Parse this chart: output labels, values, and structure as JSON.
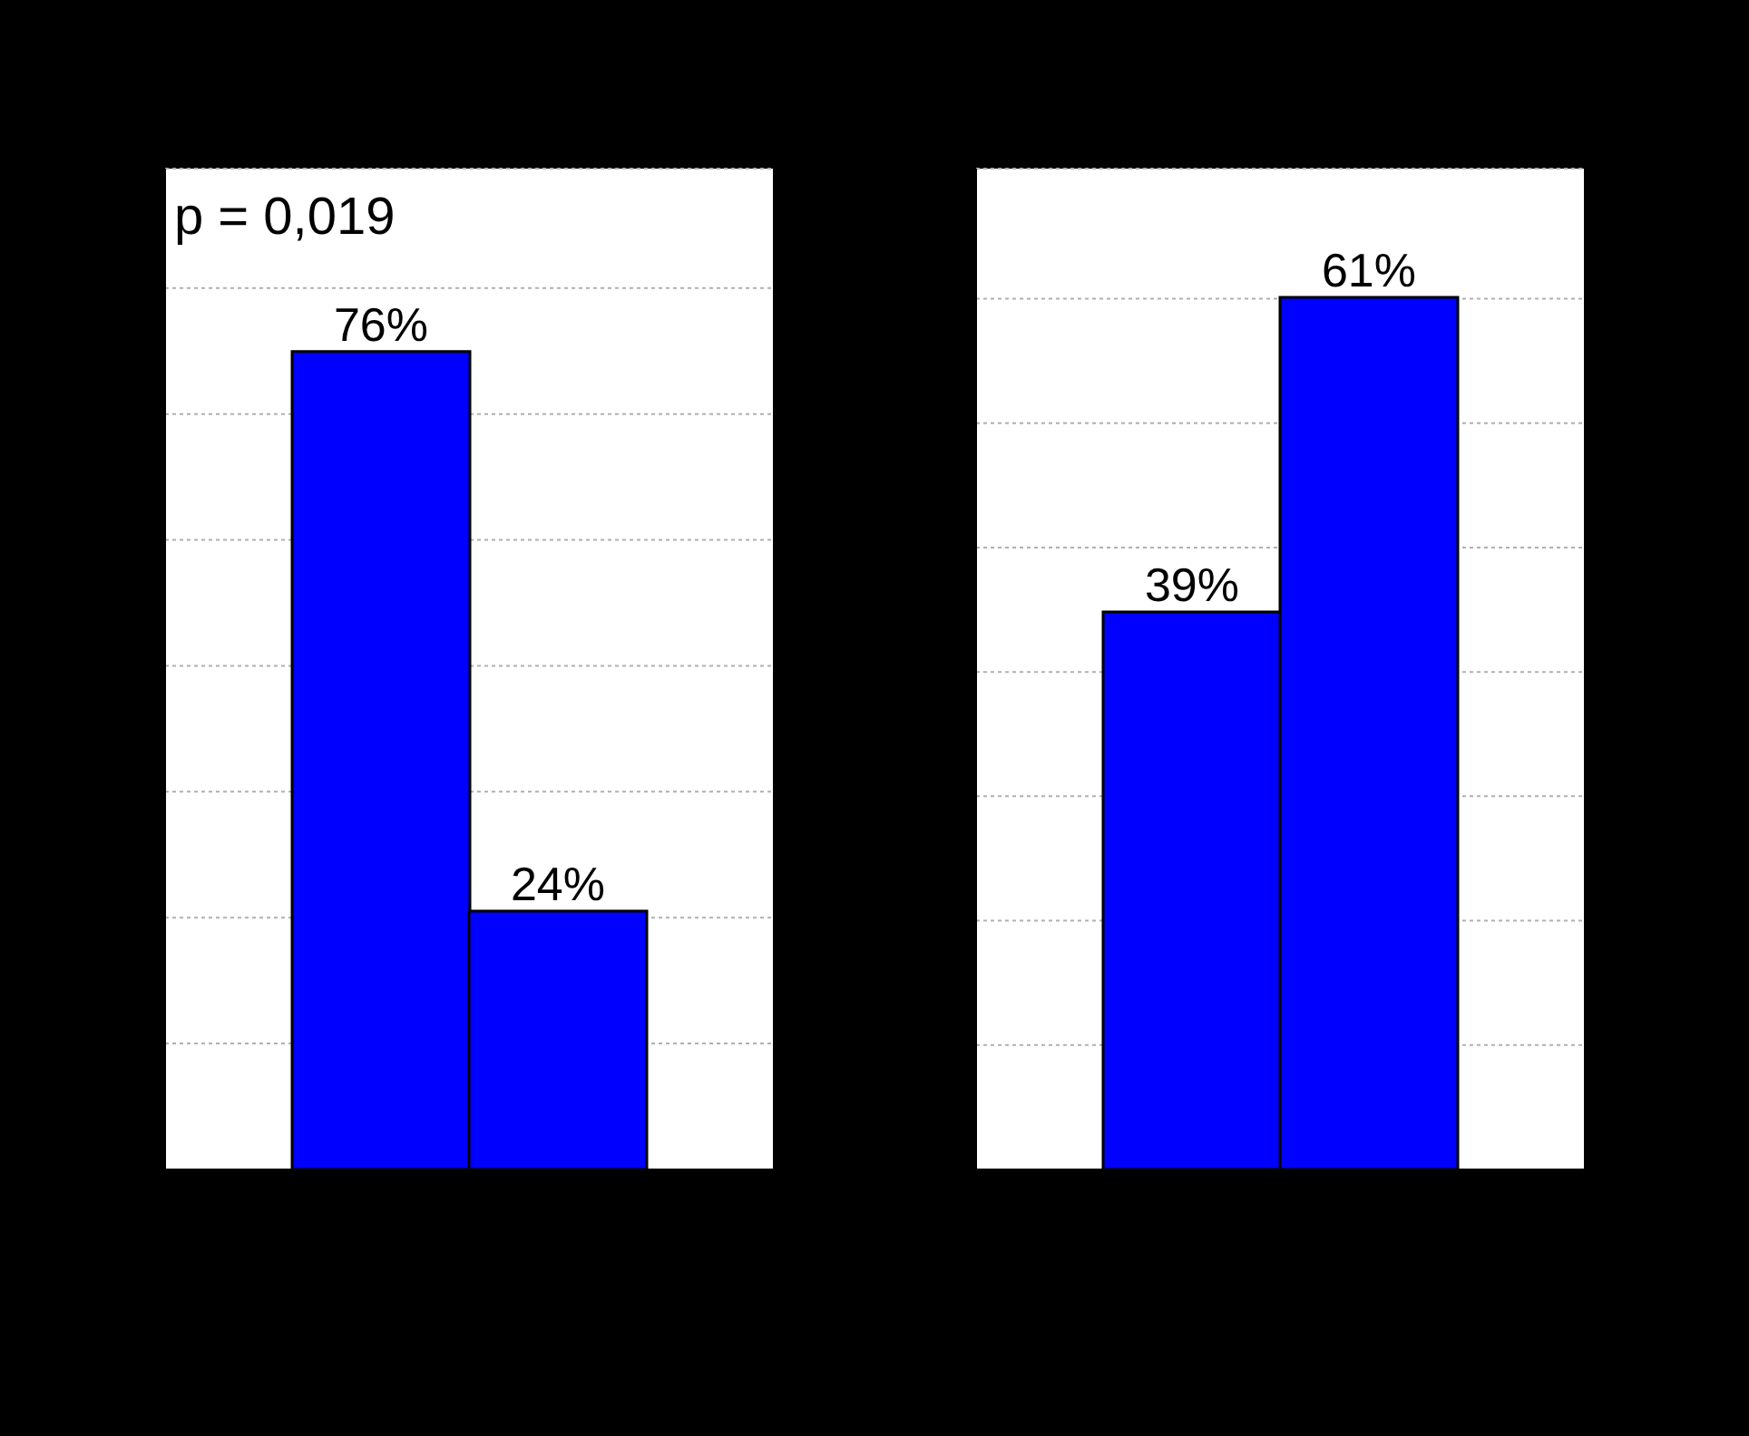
{
  "chart_data": [
    {
      "type": "bar",
      "categories": [
        null,
        null
      ],
      "values": [
        76,
        24
      ],
      "color": "#0000ff",
      "value_labels": [
        "76%",
        "24%"
      ],
      "ylim": [
        0,
        93
      ],
      "yticks": [
        {
          "value": 0,
          "label": null
        },
        {
          "value": 11.7,
          "label": null
        },
        {
          "value": 23.4,
          "label": null
        },
        {
          "value": 35.1,
          "label": null
        },
        {
          "value": 46.8,
          "label": null
        },
        {
          "value": 58.5,
          "label": null
        },
        {
          "value": 70.2,
          "label": null
        },
        {
          "value": 81.9,
          "label": null
        }
      ],
      "grid": "y",
      "annotations": [
        "p = 0,019"
      ]
    },
    {
      "type": "bar",
      "categories": [
        null,
        null
      ],
      "values": [
        39,
        61
      ],
      "color": "#0000ff",
      "value_labels": [
        "39%",
        "61%"
      ],
      "ylim": [
        0,
        70
      ],
      "yticks": [
        {
          "value": 0,
          "label": null
        },
        {
          "value": 8.7,
          "label": null
        },
        {
          "value": 17.4,
          "label": null
        },
        {
          "value": 26.1,
          "label": null
        },
        {
          "value": 34.8,
          "label": null
        },
        {
          "value": 43.5,
          "label": null
        },
        {
          "value": 52.2,
          "label": null
        },
        {
          "value": 60.9,
          "label": null
        }
      ],
      "grid": "y"
    }
  ]
}
